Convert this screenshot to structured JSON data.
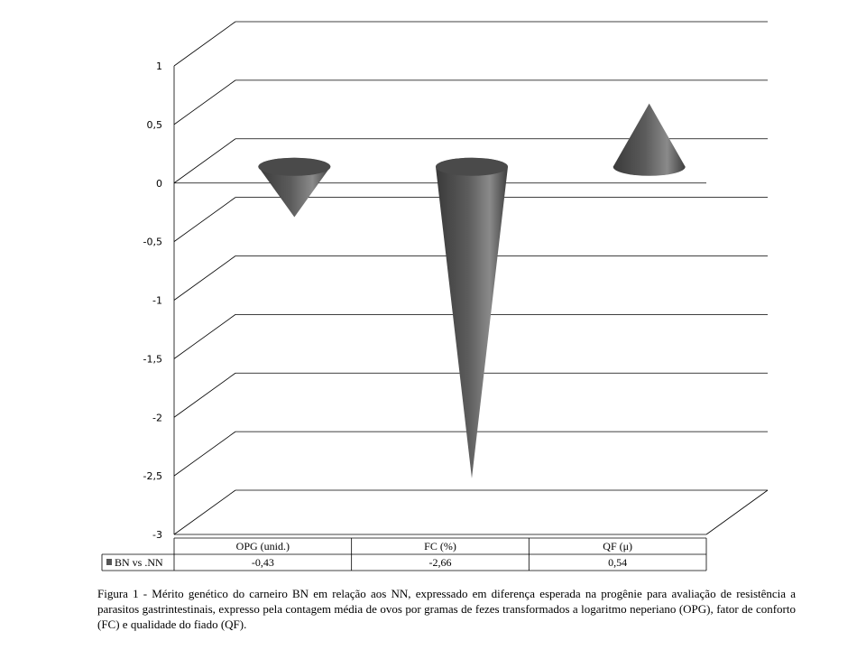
{
  "chart_data": {
    "type": "bar",
    "style": "3d-cone",
    "categories": [
      "OPG (unid.)",
      "FC (%)",
      "QF (μ)"
    ],
    "series": [
      {
        "name": "BN vs .NN",
        "values": [
          -0.43,
          -2.66,
          0.54
        ],
        "color": "#555555"
      }
    ],
    "value_labels": [
      "-0,43",
      "-2,66",
      "0,54"
    ],
    "ylim": [
      -3,
      1
    ],
    "yticks": [
      1,
      0.5,
      0,
      -0.5,
      -1,
      -1.5,
      -2,
      -2.5,
      -3
    ],
    "ytick_labels": [
      "1",
      "0,5",
      "0",
      "-0,5",
      "-1",
      "-1,5",
      "-2",
      "-2,5",
      "-3"
    ],
    "grid": true,
    "legend": "data-table",
    "title": "",
    "xlabel": "",
    "ylabel": ""
  },
  "caption": "Figura 1 - Mérito genético do carneiro BN em relação aos NN, expressado em diferença esperada na progênie para avaliação de resistência a parasitos gastrintestinais, expresso pela contagem média de ovos por gramas de fezes transformados a logaritmo neperiano (OPG), fator de conforto (FC) e qualidade do fiado (QF)."
}
